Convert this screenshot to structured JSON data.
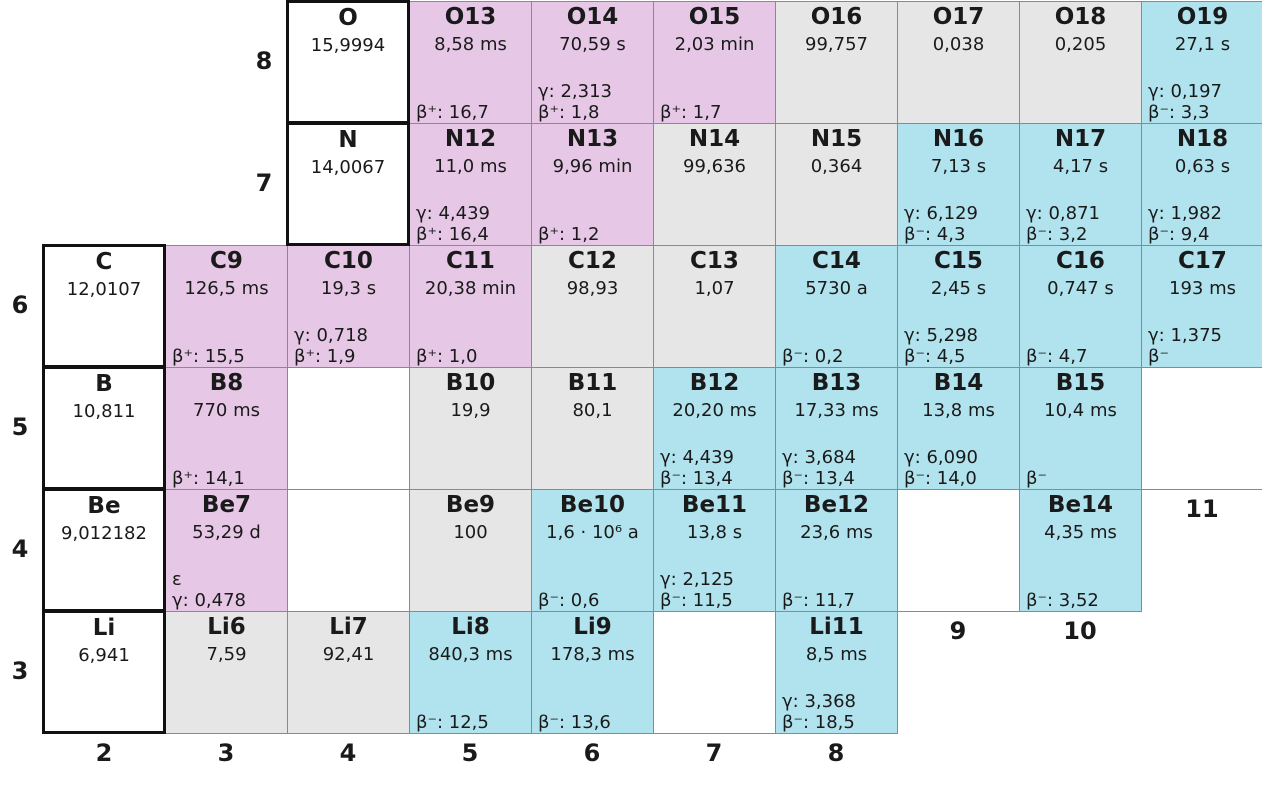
{
  "rows": [
    {
      "z": "8",
      "cells": [
        {
          "col": 2,
          "type": "element",
          "name": "O",
          "value": "15,9994"
        },
        {
          "col": 3,
          "type": "purple",
          "name": "O13",
          "value": "8,58 ms",
          "decay": [
            "β⁺: 16,7"
          ]
        },
        {
          "col": 4,
          "type": "purple",
          "name": "O14",
          "value": "70,59 s",
          "decay": [
            "γ: 2,313",
            "β⁺: 1,8"
          ]
        },
        {
          "col": 5,
          "type": "purple",
          "name": "O15",
          "value": "2,03 min",
          "decay": [
            "β⁺: 1,7"
          ]
        },
        {
          "col": 6,
          "type": "grey",
          "name": "O16",
          "value": "99,757"
        },
        {
          "col": 7,
          "type": "grey",
          "name": "O17",
          "value": "0,038"
        },
        {
          "col": 8,
          "type": "grey",
          "name": "O18",
          "value": "0,205"
        },
        {
          "col": 9,
          "type": "blue",
          "name": "O19",
          "value": "27,1 s",
          "decay": [
            "γ: 0,197",
            "β⁻: 3,3"
          ]
        }
      ]
    },
    {
      "z": "7",
      "cells": [
        {
          "col": 2,
          "type": "element",
          "name": "N",
          "value": "14,0067"
        },
        {
          "col": 3,
          "type": "purple",
          "name": "N12",
          "value": "11,0 ms",
          "decay": [
            "γ: 4,439",
            "β⁺: 16,4"
          ]
        },
        {
          "col": 4,
          "type": "purple",
          "name": "N13",
          "value": "9,96 min",
          "decay": [
            "β⁺: 1,2"
          ]
        },
        {
          "col": 5,
          "type": "grey",
          "name": "N14",
          "value": "99,636"
        },
        {
          "col": 6,
          "type": "grey",
          "name": "N15",
          "value": "0,364"
        },
        {
          "col": 7,
          "type": "blue",
          "name": "N16",
          "value": "7,13 s",
          "decay": [
            "γ: 6,129",
            "β⁻: 4,3"
          ]
        },
        {
          "col": 8,
          "type": "blue",
          "name": "N17",
          "value": "4,17 s",
          "decay": [
            "γ: 0,871",
            "β⁻: 3,2"
          ]
        },
        {
          "col": 9,
          "type": "blue",
          "name": "N18",
          "value": "0,63 s",
          "decay": [
            "γ: 1,982",
            "β⁻: 9,4"
          ]
        }
      ]
    },
    {
      "z": "6",
      "cells": [
        {
          "col": 0,
          "type": "element",
          "name": "C",
          "value": "12,0107"
        },
        {
          "col": 1,
          "type": "purple",
          "name": "C9",
          "value": "126,5 ms",
          "decay": [
            "β⁺: 15,5"
          ]
        },
        {
          "col": 2,
          "type": "purple",
          "name": "C10",
          "value": "19,3 s",
          "decay": [
            "γ: 0,718",
            "β⁺: 1,9"
          ]
        },
        {
          "col": 3,
          "type": "purple",
          "name": "C11",
          "value": "20,38 min",
          "decay": [
            "β⁺: 1,0"
          ]
        },
        {
          "col": 4,
          "type": "grey",
          "name": "C12",
          "value": "98,93"
        },
        {
          "col": 5,
          "type": "grey",
          "name": "C13",
          "value": "1,07"
        },
        {
          "col": 6,
          "type": "blue",
          "name": "C14",
          "value": "5730 a",
          "decay": [
            "β⁻: 0,2"
          ]
        },
        {
          "col": 7,
          "type": "blue",
          "name": "C15",
          "value": "2,45 s",
          "decay": [
            "γ: 5,298",
            "β⁻: 4,5"
          ]
        },
        {
          "col": 8,
          "type": "blue",
          "name": "C16",
          "value": "0,747 s",
          "decay": [
            "β⁻: 4,7"
          ]
        },
        {
          "col": 9,
          "type": "blue",
          "name": "C17",
          "value": "193 ms",
          "decay": [
            "γ: 1,375",
            "β⁻"
          ]
        }
      ]
    },
    {
      "z": "5",
      "cells": [
        {
          "col": 0,
          "type": "element",
          "name": "B",
          "value": "10,811"
        },
        {
          "col": 1,
          "type": "purple",
          "name": "B8",
          "value": "770 ms",
          "decay": [
            "β⁺: 14,1"
          ]
        },
        {
          "col": 2,
          "type": "blank"
        },
        {
          "col": 3,
          "type": "grey",
          "name": "B10",
          "value": "19,9"
        },
        {
          "col": 4,
          "type": "grey",
          "name": "B11",
          "value": "80,1"
        },
        {
          "col": 5,
          "type": "blue",
          "name": "B12",
          "value": "20,20 ms",
          "decay": [
            "γ: 4,439",
            "β⁻: 13,4"
          ]
        },
        {
          "col": 6,
          "type": "blue",
          "name": "B13",
          "value": "17,33 ms",
          "decay": [
            "γ: 3,684",
            "β⁻: 13,4"
          ]
        },
        {
          "col": 7,
          "type": "blue",
          "name": "B14",
          "value": "13,8 ms",
          "decay": [
            "γ: 6,090",
            "β⁻: 14,0"
          ]
        },
        {
          "col": 8,
          "type": "blue",
          "name": "B15",
          "value": "10,4 ms",
          "decay": [
            "β⁻"
          ]
        },
        {
          "col": 9,
          "type": "blank"
        }
      ]
    },
    {
      "z": "4",
      "cells": [
        {
          "col": 0,
          "type": "element",
          "name": "Be",
          "value": "9,012182"
        },
        {
          "col": 1,
          "type": "purple",
          "name": "Be7",
          "value": "53,29 d",
          "decay": [
            "ε",
            "γ: 0,478"
          ]
        },
        {
          "col": 2,
          "type": "blank"
        },
        {
          "col": 3,
          "type": "grey",
          "name": "Be9",
          "value": "100"
        },
        {
          "col": 4,
          "type": "blue",
          "name": "Be10",
          "value": "1,6 · 10⁶ a",
          "decay": [
            "β⁻: 0,6"
          ]
        },
        {
          "col": 5,
          "type": "blue",
          "name": "Be11",
          "value": "13,8 s",
          "decay": [
            "γ: 2,125",
            "β⁻: 11,5"
          ]
        },
        {
          "col": 6,
          "type": "blue",
          "name": "Be12",
          "value": "23,6 ms",
          "decay": [
            "β⁻: 11,7"
          ]
        },
        {
          "col": 7,
          "type": "blank"
        },
        {
          "col": 8,
          "type": "blue",
          "name": "Be14",
          "value": "4,35 ms",
          "decay": [
            "β⁻: 3,52"
          ]
        }
      ]
    },
    {
      "z": "3",
      "cells": [
        {
          "col": 0,
          "type": "element",
          "name": "Li",
          "value": "6,941"
        },
        {
          "col": 1,
          "type": "grey",
          "name": "Li6",
          "value": "7,59"
        },
        {
          "col": 2,
          "type": "grey",
          "name": "Li7",
          "value": "92,41"
        },
        {
          "col": 3,
          "type": "blue",
          "name": "Li8",
          "value": "840,3 ms",
          "decay": [
            "β⁻: 12,5"
          ]
        },
        {
          "col": 4,
          "type": "blue",
          "name": "Li9",
          "value": "178,3 ms",
          "decay": [
            "β⁻: 13,6"
          ]
        },
        {
          "col": 5,
          "type": "blank"
        },
        {
          "col": 6,
          "type": "blue",
          "name": "Li11",
          "value": "8,5 ms",
          "decay": [
            "γ: 3,368",
            "β⁻: 18,5"
          ]
        }
      ]
    }
  ],
  "bottom_axis": [
    {
      "label": "2",
      "col": 0
    },
    {
      "label": "3",
      "col": 1
    },
    {
      "label": "4",
      "col": 2
    },
    {
      "label": "5",
      "col": 3
    },
    {
      "label": "6",
      "col": 4
    },
    {
      "label": "7",
      "col": 5
    },
    {
      "label": "8",
      "col": 6
    }
  ],
  "stepped_labels": [
    {
      "label": "9",
      "col": 7,
      "row": 5
    },
    {
      "label": "10",
      "col": 8,
      "row": 5
    },
    {
      "label": "11",
      "col": 9,
      "row": 4
    }
  ],
  "colors": {
    "purple": "#e6c8e6",
    "blue": "#b1e3ef",
    "grey": "#e6e6e6",
    "border": "#8a8a8a",
    "element_border": "#111111"
  }
}
